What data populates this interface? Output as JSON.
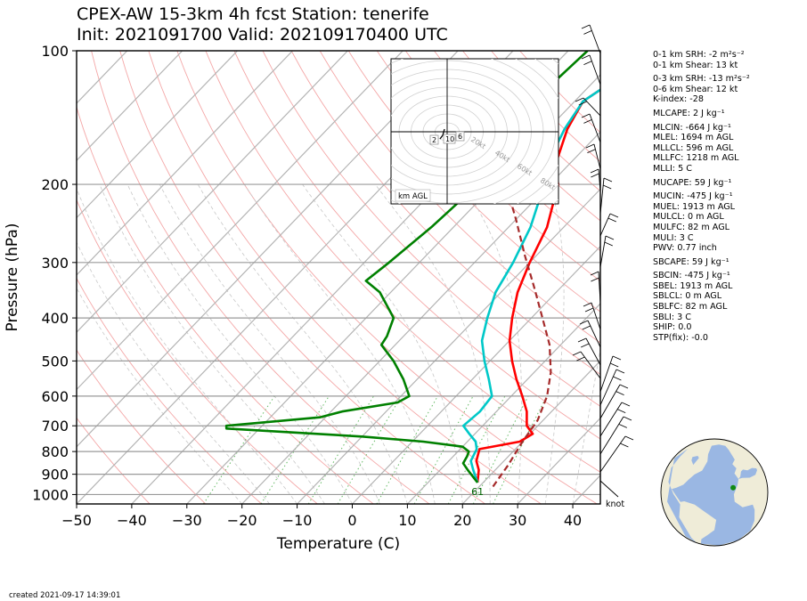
{
  "header": {
    "title_line1": "CPEX-AW 15-3km  4h fcst  Station: tenerife",
    "title_line2": "Init: 2021091700  Valid: 202109170400 UTC"
  },
  "footer": {
    "created": "created 2021-09-17 14:39:01"
  },
  "stats": [
    [
      "0-1 km SRH: -2 m²s⁻²",
      "0-1 km Shear: 13 kt"
    ],
    [
      "0-3 km SRH: -13 m²s⁻²",
      "0-6 km Shear: 12 kt",
      "K-index: -28"
    ],
    [
      "MLCAPE: 2 J kg⁻¹"
    ],
    [
      "MLCIN: -664 J kg⁻¹",
      "MLEL: 1694 m AGL",
      "MLLCL: 596 m AGL",
      "MLLFC: 1218 m AGL",
      "MLLI: 5 C"
    ],
    [
      "MUCAPE: 59 J kg⁻¹"
    ],
    [
      "MUCIN: -475 J kg⁻¹",
      "MUEL: 1913 m AGL",
      "MULCL: 0 m AGL",
      "MULFC: 82 m AGL",
      "MULI: 3 C",
      "PWV: 0.77 inch"
    ],
    [
      "SBCAPE: 59 J kg⁻¹"
    ],
    [
      "SBCIN: -475 J kg⁻¹",
      "SBEL: 1913 m AGL",
      "SBLCL: 0 m AGL",
      "SBLFC: 82 m AGL",
      "SBLI: 3 C",
      "SHIP: 0.0",
      "STP(fix): -0.0"
    ]
  ],
  "chart_data": {
    "type": "line",
    "subtype": "skew-T log-P sounding",
    "xlabel": "Temperature (C)",
    "ylabel": "Pressure (hPa)",
    "xlim": [
      -50,
      45
    ],
    "ylim": [
      1050,
      100
    ],
    "y_scale": "log",
    "x_ticks": [
      -50,
      -40,
      -30,
      -20,
      -10,
      0,
      10,
      20,
      30,
      40
    ],
    "y_ticks": [
      100,
      200,
      300,
      400,
      500,
      600,
      700,
      800,
      900,
      1000
    ],
    "surface_label": "61",
    "wind_unit_label": "knot",
    "series": [
      {
        "key": "temperature",
        "color": "#ff0000",
        "points": [
          [
            -23.5,
            100
          ],
          [
            -28.5,
            130
          ],
          [
            -26.5,
            150
          ],
          [
            -22.5,
            180
          ],
          [
            -18.5,
            200
          ],
          [
            -13,
            250
          ],
          [
            -10,
            300
          ],
          [
            -7,
            350
          ],
          [
            -3.5,
            400
          ],
          [
            0,
            450
          ],
          [
            4,
            500
          ],
          [
            8,
            550
          ],
          [
            12,
            600
          ],
          [
            15.5,
            650
          ],
          [
            18,
            700
          ],
          [
            20.5,
            730
          ],
          [
            19.5,
            760
          ],
          [
            13.5,
            790
          ],
          [
            15,
            840
          ],
          [
            17,
            880
          ],
          [
            19,
            940
          ]
        ]
      },
      {
        "key": "temperature_bl",
        "color": "#00c8c8",
        "points": [
          [
            -23.5,
            100
          ],
          [
            -28.5,
            130
          ],
          [
            -27,
            150
          ],
          [
            -24,
            180
          ],
          [
            -21,
            200
          ],
          [
            -16,
            250
          ],
          [
            -13,
            300
          ],
          [
            -11,
            350
          ],
          [
            -8,
            400
          ],
          [
            -5,
            450
          ],
          [
            -1,
            500
          ],
          [
            3,
            550
          ],
          [
            6.5,
            600
          ],
          [
            7,
            650
          ],
          [
            6.5,
            700
          ],
          [
            9,
            730
          ],
          [
            11.5,
            760
          ],
          [
            13,
            790
          ],
          [
            14,
            840
          ],
          [
            16,
            880
          ],
          [
            19,
            940
          ]
        ]
      },
      {
        "key": "dewpoint",
        "color": "#008000",
        "points": [
          [
            -36.5,
            100
          ],
          [
            -37.5,
            130
          ],
          [
            -36,
            150
          ],
          [
            -35,
            180
          ],
          [
            -33,
            200
          ],
          [
            -34,
            250
          ],
          [
            -35.5,
            300
          ],
          [
            -36.5,
            330
          ],
          [
            -32,
            350
          ],
          [
            -25,
            400
          ],
          [
            -23,
            440
          ],
          [
            -22.5,
            460
          ],
          [
            -17.5,
            500
          ],
          [
            -12.5,
            550
          ],
          [
            -8.5,
            600
          ],
          [
            -9.5,
            620
          ],
          [
            -18,
            650
          ],
          [
            -21,
            670
          ],
          [
            -36.5,
            700
          ],
          [
            -36,
            710
          ],
          [
            -10,
            740
          ],
          [
            2,
            760
          ],
          [
            10,
            780
          ],
          [
            12,
            800
          ],
          [
            12.5,
            820
          ],
          [
            13,
            850
          ],
          [
            15,
            880
          ],
          [
            19,
            940
          ]
        ]
      },
      {
        "key": "parcel",
        "color": "#a52a2a",
        "points": [
          [
            -51,
            120
          ],
          [
            -38,
            160
          ],
          [
            -28,
            200
          ],
          [
            -20,
            240
          ],
          [
            -12,
            290
          ],
          [
            -5,
            340
          ],
          [
            2,
            400
          ],
          [
            8,
            460
          ],
          [
            13,
            530
          ],
          [
            16.5,
            600
          ],
          [
            19,
            680
          ],
          [
            20,
            760
          ],
          [
            21.5,
            860
          ],
          [
            22.5,
            960
          ]
        ]
      }
    ],
    "hodograph_labels": [
      "2",
      "10",
      "6"
    ],
    "hodograph_unit_label": "km AGL",
    "hodograph_rings": [
      "20kt",
      "40kt",
      "60kt",
      "80kt"
    ],
    "station_lon": -16.5,
    "station_lat": 28.3
  }
}
